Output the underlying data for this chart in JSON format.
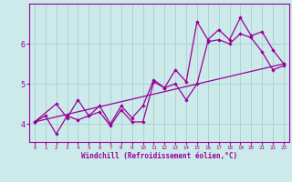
{
  "background_color": "#cceaea",
  "grid_color": "#aad4d4",
  "line_color": "#990099",
  "xlabel": "Windchill (Refroidissement éolien,°C)",
  "xlim": [
    -0.5,
    23.5
  ],
  "ylim": [
    3.55,
    7.0
  ],
  "yticks": [
    4,
    5,
    6
  ],
  "xticks": [
    0,
    1,
    2,
    3,
    4,
    5,
    6,
    7,
    8,
    9,
    10,
    11,
    12,
    13,
    14,
    15,
    16,
    17,
    18,
    19,
    20,
    21,
    22,
    23
  ],
  "line1_x": [
    0,
    1,
    2,
    3,
    4,
    5,
    6,
    7,
    8,
    9,
    10,
    11,
    12,
    13,
    14,
    15,
    16,
    17,
    18,
    19,
    20,
    21,
    22,
    23
  ],
  "line1_y": [
    4.05,
    4.2,
    3.75,
    4.2,
    4.1,
    4.2,
    4.3,
    3.95,
    4.35,
    4.05,
    4.05,
    5.05,
    4.9,
    5.0,
    4.6,
    5.0,
    6.05,
    6.1,
    6.0,
    6.25,
    6.15,
    5.8,
    5.35,
    5.45
  ],
  "line2_x": [
    0,
    2,
    3,
    4,
    5,
    6,
    7,
    8,
    9,
    10,
    11,
    12,
    13,
    14,
    15,
    16,
    17,
    18,
    19,
    20,
    21,
    22,
    23
  ],
  "line2_y": [
    4.05,
    4.5,
    4.15,
    4.6,
    4.2,
    4.45,
    4.0,
    4.45,
    4.15,
    4.45,
    5.1,
    4.9,
    5.35,
    5.05,
    6.55,
    6.1,
    6.35,
    6.1,
    6.65,
    6.2,
    6.3,
    5.85,
    5.5
  ],
  "line3_x": [
    0,
    23
  ],
  "line3_y": [
    4.05,
    5.5
  ]
}
